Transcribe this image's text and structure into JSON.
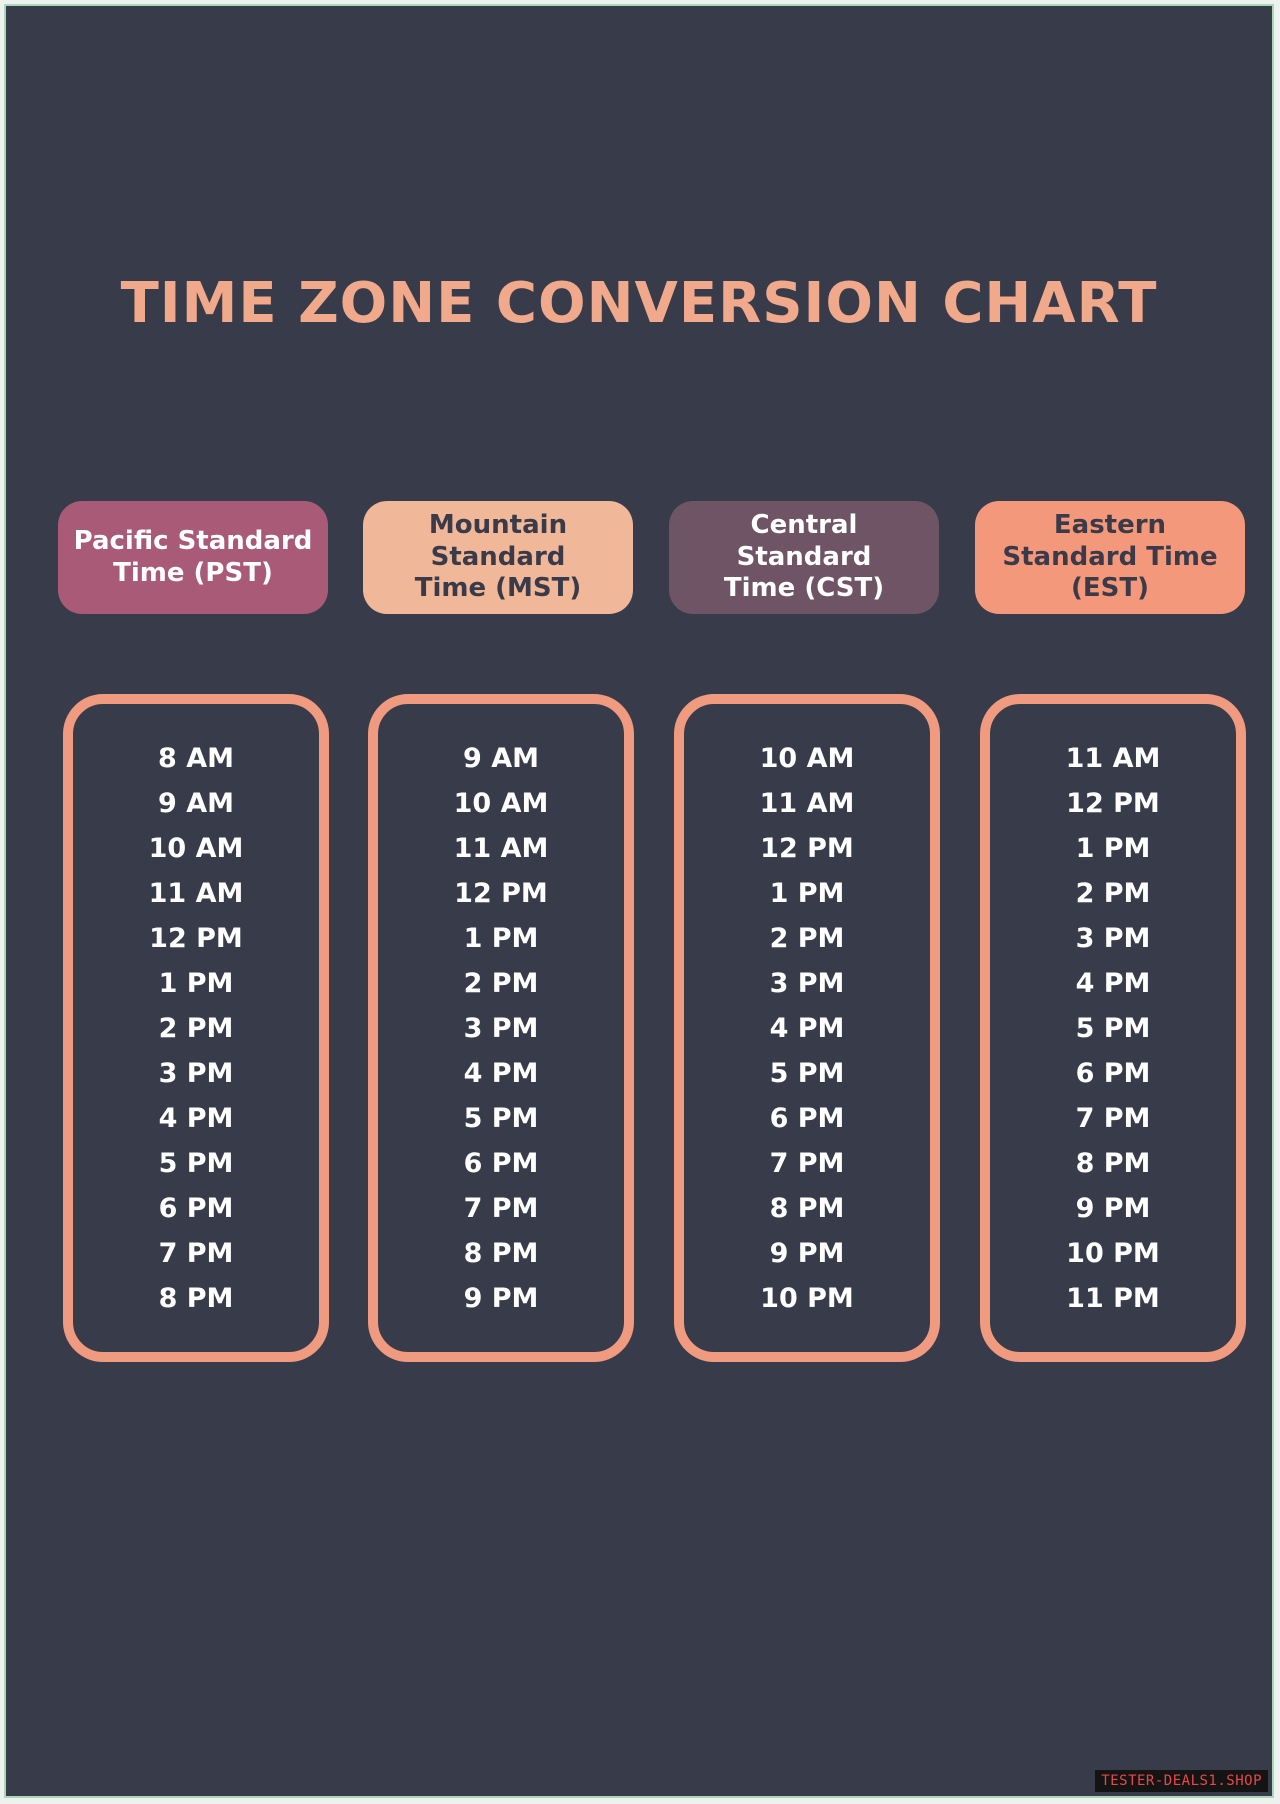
{
  "title": "TIME ZONE CONVERSION CHART",
  "columns": [
    {
      "header_lines": [
        "Pacific Standard",
        "Time (PST)"
      ],
      "times": [
        "8 AM",
        "9 AM",
        "10 AM",
        "11 AM",
        "12 PM",
        "1 PM",
        "2 PM",
        "3 PM",
        "4 PM",
        "5 PM",
        "6 PM",
        "7 PM",
        "8 PM"
      ]
    },
    {
      "header_lines": [
        "Mountain Standard",
        "Time (MST)"
      ],
      "times": [
        "9 AM",
        "10 AM",
        "11 AM",
        "12 PM",
        "1 PM",
        "2 PM",
        "3 PM",
        "4 PM",
        "5 PM",
        "6 PM",
        "7 PM",
        "8 PM",
        "9 PM"
      ]
    },
    {
      "header_lines": [
        "Central Standard",
        "Time (CST)"
      ],
      "times": [
        "10 AM",
        "11 AM",
        "12 PM",
        "1 PM",
        "2 PM",
        "3 PM",
        "4 PM",
        "5 PM",
        "6 PM",
        "7 PM",
        "8 PM",
        "9 PM",
        "10 PM"
      ]
    },
    {
      "header_lines": [
        "Eastern",
        "Standard Time",
        "(EST)"
      ],
      "times": [
        "11 AM",
        "12 PM",
        "1 PM",
        "2 PM",
        "3 PM",
        "4 PM",
        "5 PM",
        "6 PM",
        "7 PM",
        "8 PM",
        "9 PM",
        "10 PM",
        "11 PM"
      ]
    }
  ],
  "watermark": "TESTER-DEALS1.SHOP",
  "colors": {
    "background": "#383c4a",
    "title": "#f0a98a",
    "pst": "#a85a76",
    "mst": "#f0b798",
    "cst": "#6f5466",
    "est": "#f4987c",
    "column_border": "#f09a80"
  }
}
